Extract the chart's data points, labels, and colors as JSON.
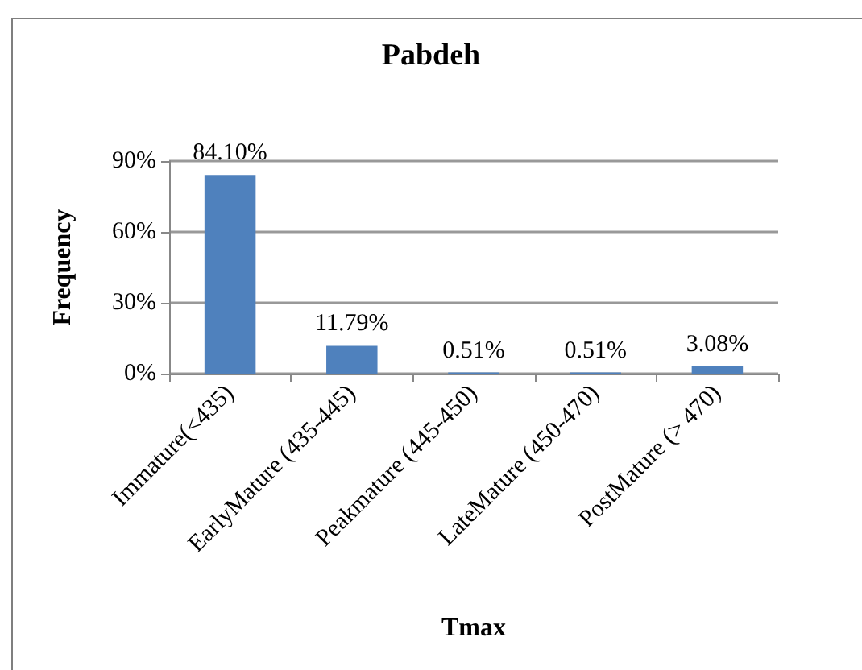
{
  "chart_data": {
    "type": "bar",
    "title": "Pabdeh",
    "xlabel": "Tmax",
    "ylabel": "Frequency",
    "categories": [
      "Immature(<435)",
      "EarlyMature (435-445)",
      "Peakmature (445-450)",
      "LateMature (450-470)",
      "PostMature (> 470)"
    ],
    "series": [
      {
        "color": "#4f81bd",
        "values": [
          84.1,
          11.79,
          0.51,
          0.51,
          3.08
        ],
        "value_labels": [
          "84.10%",
          "11.79%",
          "0.51%",
          "0.51%",
          "3.08%"
        ]
      }
    ],
    "ylim": [
      0,
      90
    ],
    "yticks": [
      {
        "value": 0,
        "label": "0%"
      },
      {
        "value": 30,
        "label": "30%"
      },
      {
        "value": 60,
        "label": "60%"
      },
      {
        "value": 90,
        "label": "90%"
      }
    ],
    "grid": "y"
  }
}
